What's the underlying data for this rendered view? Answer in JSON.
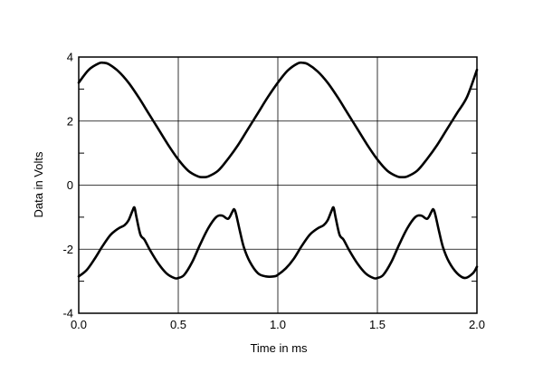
{
  "chart_data": {
    "type": "line",
    "title": "",
    "xlabel": "Time in ms",
    "ylabel": "Data in Volts",
    "xlim": [
      0.0,
      2.0
    ],
    "ylim": [
      -4,
      4
    ],
    "grid": true,
    "x_ticks": [
      0.0,
      0.5,
      1.0,
      1.5,
      2.0
    ],
    "x_tick_labels": [
      "0.0",
      "0.5",
      "1.0",
      "1.5",
      "2.0"
    ],
    "y_ticks": [
      -4,
      -2,
      0,
      2,
      4
    ],
    "y_tick_labels": [
      "-4",
      "-2",
      "0",
      "2",
      "4"
    ],
    "y_minor_ticks": [
      -3,
      -1,
      1,
      3
    ],
    "line_color": "#000000",
    "series": [
      {
        "x": [
          0.0,
          0.05,
          0.1,
          0.125,
          0.15,
          0.2,
          0.25,
          0.3,
          0.35,
          0.4,
          0.45,
          0.5,
          0.55,
          0.6,
          0.625,
          0.65,
          0.7,
          0.75,
          0.8,
          0.85,
          0.9,
          0.95,
          1.0,
          1.05,
          1.1,
          1.125,
          1.15,
          1.2,
          1.25,
          1.3,
          1.35,
          1.4,
          1.45,
          1.5,
          1.55,
          1.6,
          1.625,
          1.65,
          1.7,
          1.75,
          1.8,
          1.85,
          1.9,
          1.95,
          2.0
        ],
        "values": [
          3.2,
          3.6,
          3.8,
          3.82,
          3.78,
          3.55,
          3.2,
          2.75,
          2.25,
          1.75,
          1.25,
          0.8,
          0.45,
          0.27,
          0.25,
          0.27,
          0.45,
          0.82,
          1.25,
          1.75,
          2.25,
          2.75,
          3.2,
          3.58,
          3.8,
          3.82,
          3.78,
          3.55,
          3.2,
          2.75,
          2.25,
          1.75,
          1.25,
          0.8,
          0.45,
          0.27,
          0.25,
          0.27,
          0.45,
          0.82,
          1.25,
          1.75,
          2.25,
          2.75,
          3.6
        ]
      },
      {
        "x": [
          0.0,
          0.04,
          0.08,
          0.12,
          0.16,
          0.2,
          0.23,
          0.25,
          0.27,
          0.28,
          0.29,
          0.31,
          0.33,
          0.36,
          0.4,
          0.44,
          0.48,
          0.5,
          0.53,
          0.57,
          0.61,
          0.65,
          0.69,
          0.72,
          0.75,
          0.77,
          0.78,
          0.79,
          0.81,
          0.83,
          0.86,
          0.9,
          0.94,
          0.98,
          1.0,
          1.04,
          1.08,
          1.12,
          1.16,
          1.2,
          1.23,
          1.25,
          1.27,
          1.28,
          1.29,
          1.31,
          1.33,
          1.36,
          1.4,
          1.44,
          1.48,
          1.5,
          1.53,
          1.57,
          1.61,
          1.65,
          1.69,
          1.72,
          1.75,
          1.77,
          1.78,
          1.79,
          1.81,
          1.83,
          1.86,
          1.9,
          1.94,
          1.98,
          2.0
        ],
        "values": [
          -2.85,
          -2.65,
          -2.3,
          -1.9,
          -1.55,
          -1.35,
          -1.25,
          -1.1,
          -0.8,
          -0.7,
          -1.0,
          -1.55,
          -1.7,
          -2.05,
          -2.45,
          -2.75,
          -2.9,
          -2.9,
          -2.8,
          -2.4,
          -1.85,
          -1.35,
          -1.0,
          -0.95,
          -1.05,
          -0.85,
          -0.75,
          -0.9,
          -1.45,
          -1.95,
          -2.4,
          -2.75,
          -2.85,
          -2.85,
          -2.8,
          -2.6,
          -2.3,
          -1.9,
          -1.55,
          -1.35,
          -1.25,
          -1.1,
          -0.8,
          -0.7,
          -1.0,
          -1.55,
          -1.7,
          -2.05,
          -2.45,
          -2.75,
          -2.9,
          -2.9,
          -2.8,
          -2.4,
          -1.85,
          -1.35,
          -1.0,
          -0.95,
          -1.05,
          -0.85,
          -0.75,
          -0.9,
          -1.45,
          -1.95,
          -2.4,
          -2.75,
          -2.9,
          -2.75,
          -2.55
        ]
      }
    ]
  }
}
